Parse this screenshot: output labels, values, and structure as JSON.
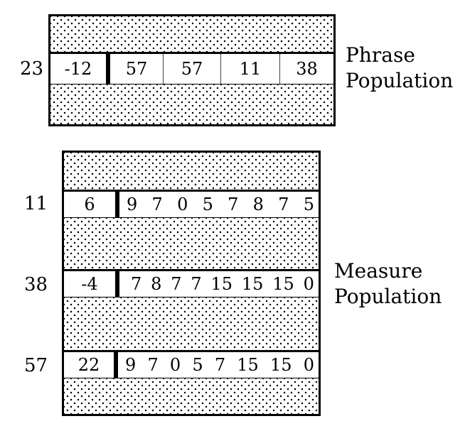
{
  "phrase": {
    "caption_line1": "Phrase",
    "caption_line2": "Population",
    "row": {
      "label": "23",
      "first": "-12",
      "cells": [
        "57",
        "57",
        "11",
        "38"
      ]
    }
  },
  "measure": {
    "caption_line1": "Measure",
    "caption_line2": "Population",
    "rows": [
      {
        "label": "11",
        "first": "6",
        "values": [
          "9",
          "7",
          "0",
          "5",
          "7",
          "8",
          "7",
          "5"
        ]
      },
      {
        "label": "38",
        "first": "-4",
        "values": [
          "7",
          "8",
          "7",
          "7",
          "15",
          "15",
          "15",
          "0"
        ]
      },
      {
        "label": "57",
        "first": "22",
        "values": [
          "9",
          "7",
          "0",
          "5",
          "7",
          "15",
          "15",
          "0"
        ]
      }
    ]
  }
}
